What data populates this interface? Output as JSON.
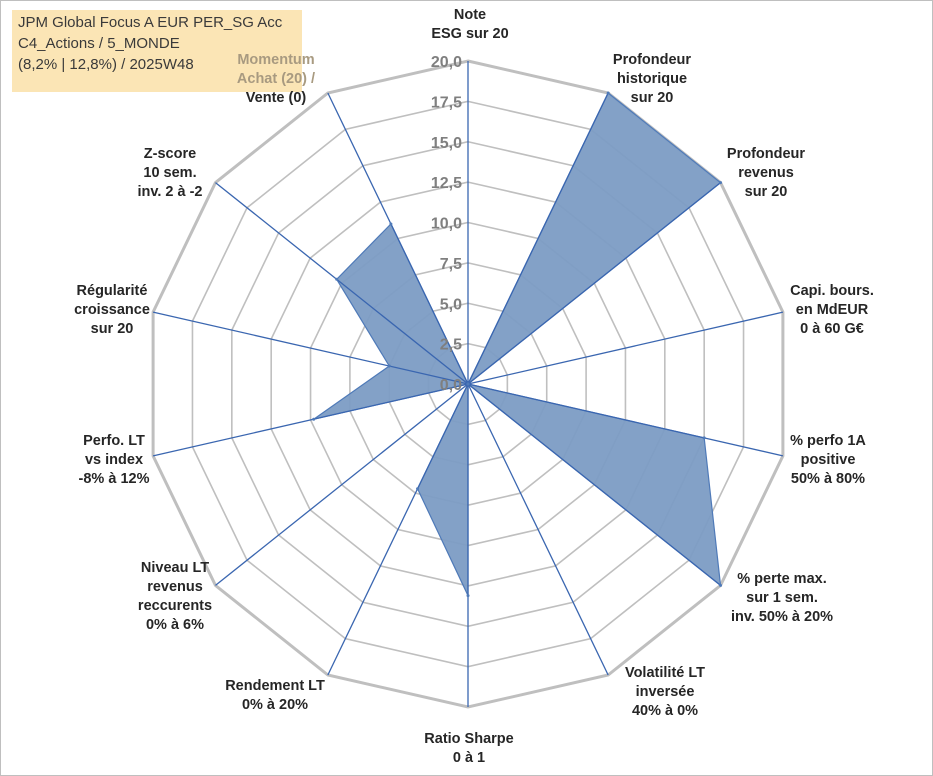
{
  "title": {
    "line1": "JPM Global Focus A EUR PER_SG Acc",
    "line2": "C4_Actions / 5_MONDE",
    "line3": "(8,2% | 12,8%) / 2025W48"
  },
  "chart_data": {
    "type": "radar",
    "rmin": 0,
    "rmax": 20,
    "tick_values": [
      0,
      2.5,
      5,
      7.5,
      10,
      12.5,
      15,
      17.5,
      20
    ],
    "tick_labels": [
      "0,0",
      "2,5",
      "5,0",
      "7,5",
      "10,0",
      "12,5",
      "15,0",
      "17,5",
      "20,0"
    ],
    "grid": true,
    "categories": [
      [
        "Note",
        "ESG sur 20"
      ],
      [
        "Profondeur",
        "historique",
        "sur 20"
      ],
      [
        "Profondeur",
        "revenus",
        "sur 20"
      ],
      [
        "Capi. bours.",
        "en MdEUR",
        "0 à 60 G€"
      ],
      [
        "% perfo 1A",
        "positive",
        "50% à 80%"
      ],
      [
        "% perte max.",
        "sur 1 sem.",
        "inv. 50% à 20%"
      ],
      [
        "Volatilité LT",
        "inversée",
        "40% à 0%"
      ],
      [
        "Ratio Sharpe",
        "0 à 1"
      ],
      [
        "Rendement LT",
        "0% à 20%"
      ],
      [
        "Niveau LT",
        "revenus",
        "reccurents",
        "0% à 6%"
      ],
      [
        "Perfo. LT",
        "vs index",
        "-8% à 12%"
      ],
      [
        "Régularité",
        "croissance",
        "sur 20"
      ],
      [
        "Z-score",
        "10 sem.",
        "inv. 2 à -2"
      ],
      [
        "Momentum",
        "Achat (20) /",
        "Vente (0)"
      ]
    ],
    "values": [
      0,
      20,
      20,
      0,
      15,
      20,
      0,
      13.1,
      7.2,
      0,
      9.8,
      5.0,
      10.4,
      11.0
    ],
    "colors": {
      "fill": "#7c9cc4",
      "stroke": "#4f7ab8",
      "axis": "#3a66b0",
      "grid": "#bfbfbf"
    }
  }
}
